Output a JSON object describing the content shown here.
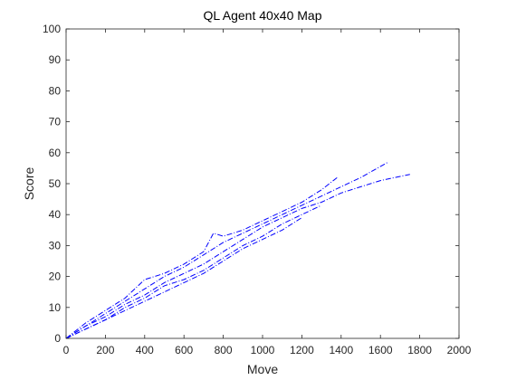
{
  "chart_data": {
    "type": "line",
    "title": "QL Agent 40x40 Map",
    "xlabel": "Move",
    "ylabel": "Score",
    "xlim": [
      0,
      2000
    ],
    "ylim": [
      0,
      100
    ],
    "xticks": [
      0,
      200,
      400,
      600,
      800,
      1000,
      1200,
      1400,
      1600,
      1800,
      2000
    ],
    "yticks": [
      0,
      10,
      20,
      30,
      40,
      50,
      60,
      70,
      80,
      90,
      100
    ],
    "grid": false,
    "line_style": "dash-dot",
    "series_color": "#0000ff",
    "series": [
      {
        "x": [
          0,
          100,
          200,
          300,
          400,
          500,
          600,
          700,
          750,
          800,
          900,
          1000,
          1100,
          1200,
          1300,
          1380
        ],
        "y": [
          0,
          5,
          9,
          13,
          19,
          21,
          24,
          28,
          34,
          33,
          35,
          38,
          41,
          44,
          48,
          52
        ]
      },
      {
        "x": [
          0,
          100,
          200,
          300,
          400,
          500,
          600,
          700,
          800,
          900,
          1000,
          1100,
          1200,
          1300,
          1400,
          1500,
          1640
        ],
        "y": [
          0,
          4,
          8,
          12,
          16,
          20,
          23,
          27,
          31,
          34,
          37,
          40,
          43,
          46,
          49,
          52,
          57
        ]
      },
      {
        "x": [
          0,
          100,
          200,
          300,
          400,
          500,
          600,
          700,
          800,
          900,
          1000,
          1100,
          1200,
          1300,
          1400,
          1500,
          1600,
          1750
        ],
        "y": [
          0,
          4,
          7,
          11,
          14,
          18,
          21,
          24,
          28,
          32,
          36,
          39,
          42,
          44,
          47,
          49,
          51,
          53
        ]
      },
      {
        "x": [
          0,
          100,
          200,
          300,
          400,
          500,
          600,
          700,
          800,
          900,
          1000,
          1100,
          1200,
          1300
        ],
        "y": [
          0,
          3,
          6,
          10,
          13,
          17,
          19,
          22,
          26,
          30,
          33,
          37,
          40,
          43
        ]
      },
      {
        "x": [
          0,
          100,
          200,
          300,
          400,
          500,
          600,
          700,
          800,
          900,
          1000,
          1100,
          1200
        ],
        "y": [
          0,
          3,
          6,
          9,
          12,
          15,
          18,
          21,
          25,
          29,
          32,
          35,
          39
        ]
      }
    ]
  }
}
